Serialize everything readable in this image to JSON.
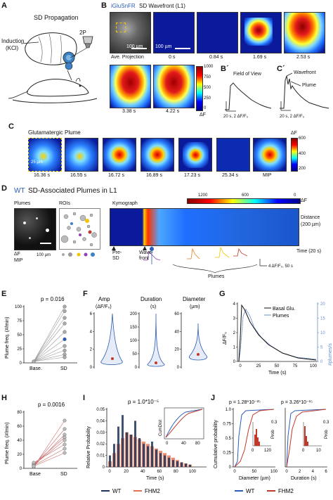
{
  "panel_letters": {
    "A": "A",
    "B": "B",
    "Bp": "B´",
    "Cp": "C´",
    "C": "C",
    "D": "D",
    "E": "E",
    "F": "F",
    "G": "G",
    "H": "H",
    "I": "I",
    "J": "J"
  },
  "A": {
    "title": "SD Propagation",
    "induction": "Induction",
    "kcl": "(KCl)",
    "twop": "2P"
  },
  "B": {
    "indicator": "iGluSnFR",
    "title": "SD Wavefront (L1)",
    "scale1": "100 µm",
    "scale2": "100 µm",
    "labels": [
      "Ave. Projection",
      "0 s",
      "0.84 s",
      "1.69 s",
      "2.53 s",
      "3.38 s",
      "4.22 s"
    ],
    "cbar_ticks": [
      "1000",
      "750",
      "500",
      "250",
      "0"
    ],
    "cbar_unit": "ΔF"
  },
  "Bp": {
    "title": "Field of View",
    "scale": "20 s, 2 ΔF/F₀"
  },
  "Cp": {
    "wavefront": "Wavefront",
    "plume": "Plume",
    "scale": "20 s, 2 ΔF/F₀"
  },
  "C": {
    "title": "Glutamatergic Plume",
    "scale": "25 µm",
    "labels": [
      "16.36 s",
      "16.55 s",
      "16.72 s",
      "16.89 s",
      "17.23 s",
      "25.34 s",
      "MIP"
    ],
    "cbar_unit": "ΔF",
    "cbar_ticks": [
      "600",
      "400",
      "200"
    ]
  },
  "D": {
    "wt": "WT",
    "title": "SD-Associated Plumes in L1",
    "plumes": "Plumes",
    "rois": "ROIs",
    "kymograph": "Kymograph",
    "dfmip1": "ΔF",
    "dfmip2": "MIP",
    "scale": "100 µm",
    "cbar_ticks": [
      "1200",
      "600",
      "0"
    ],
    "cbar_unit": "ΔF",
    "pre_sd": "Pre-",
    "pre_sd2": "SD",
    "wavefront": "Wave-",
    "wavefront2": "front",
    "plumes_brace": "Plumes",
    "trace_scale": "4 ΔF/F₀, 50 s",
    "time": "Time (20 s)",
    "distance": "Distance",
    "distance2": "(200 µm)"
  },
  "E": {
    "p": "p = 0.016",
    "ylabel": "Plume freq. (#/min)",
    "xticks": [
      "Base.",
      "SD"
    ],
    "yticks": [
      "0",
      "25",
      "50",
      "75",
      "100"
    ]
  },
  "F": {
    "titles": [
      "Amp",
      "Duration",
      "Diameter"
    ],
    "units": [
      "(ΔF/F₀)",
      "(s)",
      "(µm)"
    ],
    "yticks1": [
      "0",
      "2",
      "4",
      "6"
    ],
    "yticks2": [
      "0",
      "50",
      "100",
      "150",
      "200"
    ],
    "yticks3": [
      "0",
      "20",
      "40",
      "60"
    ]
  },
  "G": {
    "legend": [
      "Basal Glu.",
      "Plumes"
    ],
    "xlabel": "Time (s)",
    "ylabel": "ΔF/F₀",
    "ylabel2": "#plumes/s",
    "xticks": [
      "0",
      "25",
      "50",
      "75",
      "100"
    ],
    "yticks": [
      "0",
      "1",
      "2",
      "3",
      "4"
    ],
    "yticks2": [
      "0",
      "5",
      "10",
      "15",
      "20"
    ]
  },
  "H": {
    "p": "p = 0.0016",
    "ylabel": "Plume freq. (#/min)",
    "xticks": [
      "Base",
      "SD"
    ],
    "yticks": [
      "0",
      "20",
      "40",
      "60",
      "80"
    ]
  },
  "I": {
    "p": "p = 1.0*10⁻⁵",
    "ylabel": "Relative Probability",
    "xlabel": "Time (s)",
    "xticks": [
      "0",
      "20",
      "40",
      "60",
      "80",
      "100"
    ],
    "yticks": [
      "0",
      "0.01",
      "0.02",
      "0.03",
      "0.04",
      "0.05"
    ],
    "inset_ylabel": "CumDist",
    "inset_xticks": [
      "0",
      "40",
      "80"
    ]
  },
  "J": {
    "p1": "p = 1.28*10⁻²⁵",
    "p2": "p = 3.26*10⁻¹⁵",
    "ylabel": "Cumulative probability",
    "xlabel1": "Diameter (µm)",
    "xlabel2": "Duration (s)",
    "xticks1": [
      "0",
      "50",
      "100"
    ],
    "xticks2": [
      "0",
      "2",
      "4",
      "6"
    ],
    "yticks": [
      "0",
      "0.25",
      "0.5",
      "0.75",
      "1.0"
    ],
    "inset_ylabel": "Prob",
    "inset_y": "0.3",
    "inset_x1": [
      "0",
      "120"
    ],
    "inset_x2": [
      "0",
      "10"
    ]
  },
  "legend": {
    "wt": "WT",
    "fhm2": "FHM2"
  },
  "colors": {
    "wt": "#2b5cb8",
    "fhm2": "#c0392b",
    "plume_blue": "#6a8fc8",
    "gray_line": "#9a9a9a"
  }
}
